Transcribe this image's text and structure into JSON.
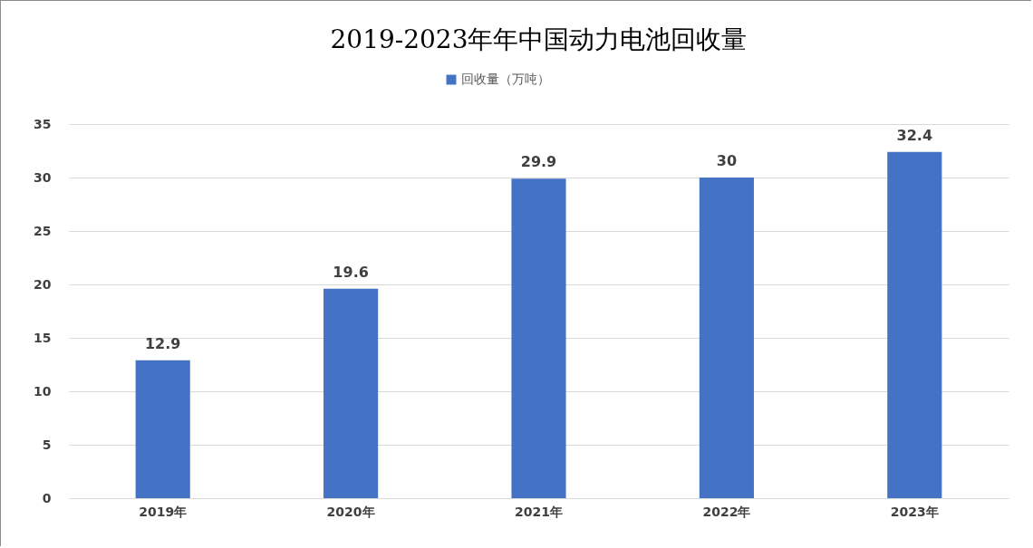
{
  "chart_data": {
    "type": "bar",
    "title": "2019-2023年年中国动力电池回收量",
    "categories": [
      "2019年",
      "2020年",
      "2021年",
      "2022年",
      "2023年"
    ],
    "series": [
      {
        "name": "回收量（万吨）",
        "color": "#4472c4",
        "values": [
          12.9,
          19.6,
          29.9,
          30,
          32.4
        ]
      }
    ],
    "ylim": [
      0,
      35
    ],
    "yticks": [
      0,
      5,
      10,
      15,
      20,
      25,
      30,
      35
    ],
    "grid": "y",
    "legend": "top",
    "data_labels": true
  }
}
